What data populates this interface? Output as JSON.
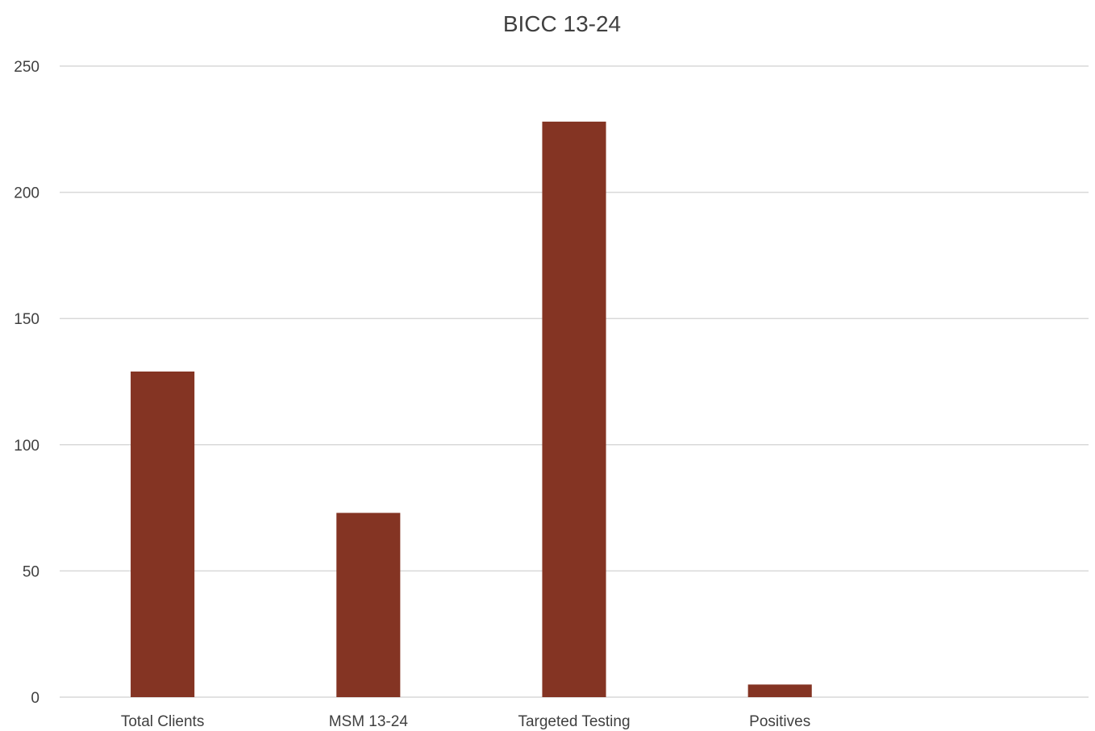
{
  "chart_data": {
    "type": "bar",
    "title": "BICC 13-24",
    "categories": [
      "Total Clients",
      "MSM 13-24",
      "Targeted Testing",
      "Positives",
      ""
    ],
    "values": [
      129,
      73,
      228,
      5,
      null
    ],
    "xlabel": "",
    "ylabel": "",
    "ylim": [
      0,
      250
    ],
    "yticks": [
      0,
      50,
      100,
      150,
      200,
      250
    ],
    "grid": true,
    "legend": "none",
    "colors": {
      "bar": "#843423",
      "grid": "#d9d9d9",
      "text": "#404040"
    }
  }
}
